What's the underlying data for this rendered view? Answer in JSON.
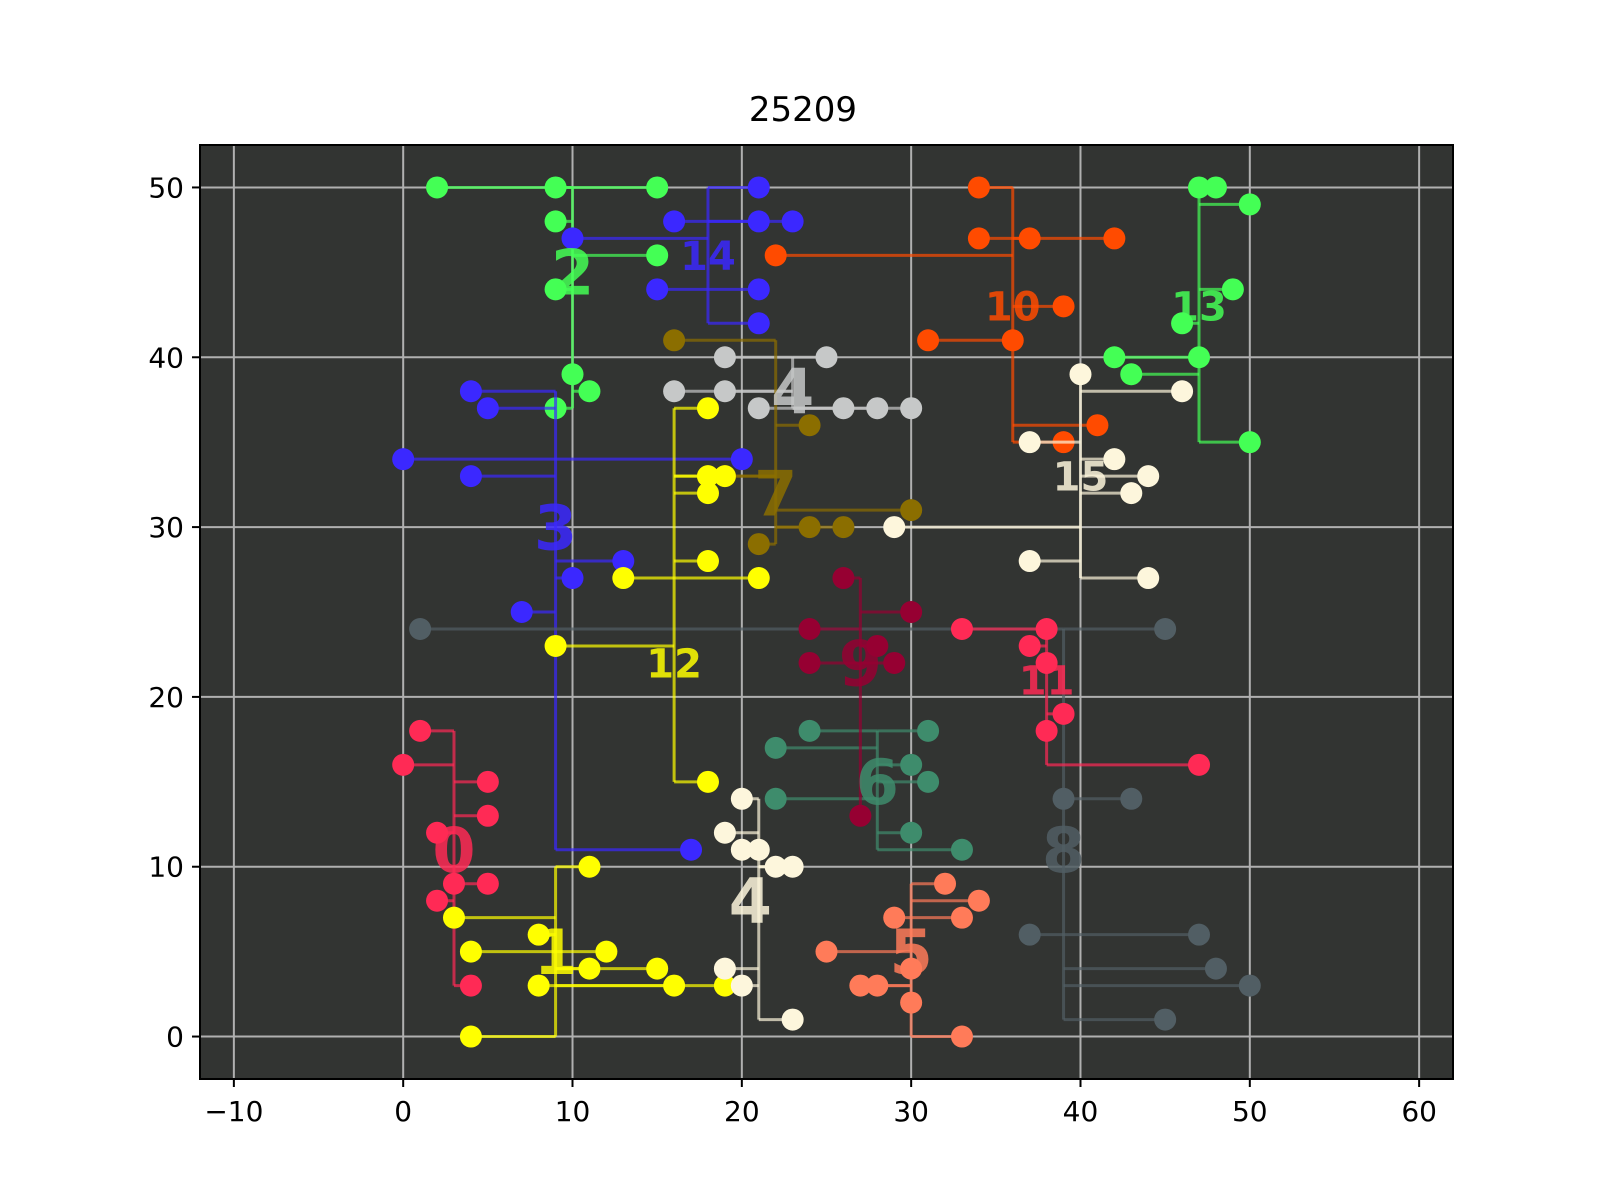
{
  "chart_data": {
    "type": "scatter",
    "title": "25209",
    "xlabel": "",
    "ylabel": "",
    "xlim": [
      -12,
      62
    ],
    "ylim": [
      -2.5,
      52.5
    ],
    "xticks": [
      -10,
      0,
      10,
      20,
      30,
      40,
      50,
      60
    ],
    "yticks": [
      0,
      10,
      20,
      30,
      40,
      50
    ],
    "xtick_labels": [
      "−10",
      "0",
      "10",
      "20",
      "30",
      "40",
      "50",
      "60"
    ],
    "ytick_labels": [
      "0",
      "10",
      "20",
      "30",
      "40",
      "50"
    ],
    "grid": true,
    "background": "#323432",
    "grid_color": "#b0b0b0",
    "series": [
      {
        "name": "0",
        "color": "#ff2a55",
        "label_at": [
          3,
          11
        ],
        "spine_x": 3,
        "points": [
          [
            1,
            18
          ],
          [
            0,
            16
          ],
          [
            5,
            15
          ],
          [
            5,
            13
          ],
          [
            2,
            12
          ],
          [
            3,
            9
          ],
          [
            5,
            9
          ],
          [
            2,
            8
          ],
          [
            4,
            3
          ]
        ]
      },
      {
        "name": "1",
        "color": "#ffff00",
        "label_at": [
          9,
          5
        ],
        "spine_x": 9,
        "points": [
          [
            3,
            7
          ],
          [
            4,
            5
          ],
          [
            8,
            6
          ],
          [
            12,
            5
          ],
          [
            11,
            4
          ],
          [
            15,
            4
          ],
          [
            8,
            3
          ],
          [
            16,
            3
          ],
          [
            4,
            0
          ],
          [
            11,
            10
          ],
          [
            19,
            3
          ]
        ]
      },
      {
        "name": "2",
        "color": "#44ff55",
        "label_at": [
          10,
          45
        ],
        "spine_x": 10,
        "points": [
          [
            2,
            50
          ],
          [
            9,
            50
          ],
          [
            15,
            50
          ],
          [
            9,
            48
          ],
          [
            15,
            46
          ],
          [
            9,
            44
          ],
          [
            10,
            39
          ],
          [
            11,
            38
          ],
          [
            9,
            37
          ]
        ]
      },
      {
        "name": "3",
        "color": "#3b28ff",
        "label_at": [
          9,
          30
        ],
        "spine_x": 9,
        "points": [
          [
            4,
            38
          ],
          [
            5,
            37
          ],
          [
            0,
            34
          ],
          [
            20,
            34
          ],
          [
            4,
            33
          ],
          [
            13,
            28
          ],
          [
            10,
            27
          ],
          [
            7,
            25
          ],
          [
            17,
            11
          ]
        ]
      },
      {
        "name": "4",
        "color": "#c6c8c8",
        "label_at": [
          23,
          38
        ],
        "spine_x": 23,
        "points": [
          [
            19,
            40
          ],
          [
            25,
            40
          ],
          [
            16,
            38
          ],
          [
            19,
            38
          ],
          [
            21,
            37
          ],
          [
            26,
            37
          ],
          [
            28,
            37
          ],
          [
            30,
            37
          ]
        ]
      },
      {
        "name": "4",
        "color": "#fdf6dc",
        "label_at": [
          20.5,
          8
        ],
        "spine_x": 21,
        "points": [
          [
            20,
            14
          ],
          [
            19,
            12
          ],
          [
            20,
            11
          ],
          [
            21,
            11
          ],
          [
            22,
            10
          ],
          [
            23,
            10
          ],
          [
            19,
            4
          ],
          [
            20,
            3
          ],
          [
            23,
            1
          ]
        ]
      },
      {
        "name": "5",
        "color": "#ff7b59",
        "label_at": [
          30,
          5
        ],
        "spine_x": 30,
        "points": [
          [
            32,
            9
          ],
          [
            34,
            8
          ],
          [
            29,
            7
          ],
          [
            33,
            7
          ],
          [
            25,
            5
          ],
          [
            27,
            3
          ],
          [
            28,
            3
          ],
          [
            30,
            4
          ],
          [
            30,
            2
          ],
          [
            33,
            0
          ]
        ]
      },
      {
        "name": "6",
        "color": "#3e8c6c",
        "label_at": [
          28,
          15
        ],
        "spine_x": 28,
        "points": [
          [
            24,
            18
          ],
          [
            31,
            18
          ],
          [
            22,
            17
          ],
          [
            30,
            16
          ],
          [
            31,
            15
          ],
          [
            22,
            14
          ],
          [
            30,
            12
          ],
          [
            33,
            11
          ]
        ]
      },
      {
        "name": "7",
        "color": "#8b6e00",
        "label_at": [
          22,
          32
        ],
        "spine_x": 22,
        "points": [
          [
            16,
            41
          ],
          [
            24,
            36
          ],
          [
            18,
            33
          ],
          [
            19,
            33
          ],
          [
            30,
            31
          ],
          [
            24,
            30
          ],
          [
            26,
            30
          ],
          [
            21,
            29
          ]
        ]
      },
      {
        "name": "8",
        "color": "#515e64",
        "label_at": [
          39,
          11
        ],
        "spine_x": 39,
        "points": [
          [
            1,
            24
          ],
          [
            45,
            24
          ],
          [
            39,
            14
          ],
          [
            43,
            14
          ],
          [
            37,
            6
          ],
          [
            47,
            6
          ],
          [
            48,
            4
          ],
          [
            50,
            3
          ],
          [
            45,
            1
          ]
        ]
      },
      {
        "name": "9",
        "color": "#960032",
        "label_at": [
          27,
          22
        ],
        "spine_x": 27,
        "points": [
          [
            26,
            27
          ],
          [
            30,
            25
          ],
          [
            24,
            24
          ],
          [
            28,
            23
          ],
          [
            24,
            22
          ],
          [
            29,
            22
          ],
          [
            27,
            13
          ]
        ]
      },
      {
        "name": "10",
        "color": "#ff4b00",
        "label_at": [
          36,
          43
        ],
        "spine_x": 36,
        "points": [
          [
            34,
            50
          ],
          [
            34,
            47
          ],
          [
            37,
            47
          ],
          [
            42,
            47
          ],
          [
            22,
            46
          ],
          [
            39,
            43
          ],
          [
            31,
            41
          ],
          [
            36,
            41
          ],
          [
            41,
            36
          ],
          [
            39,
            35
          ]
        ]
      },
      {
        "name": "11",
        "color": "#ff2a55",
        "label_at": [
          38,
          21
        ],
        "spine_x": 38,
        "points": [
          [
            33,
            24
          ],
          [
            38,
            24
          ],
          [
            37,
            23
          ],
          [
            38,
            22
          ],
          [
            39,
            19
          ],
          [
            38,
            18
          ],
          [
            47,
            16
          ]
        ]
      },
      {
        "name": "12",
        "color": "#ffff00",
        "label_at": [
          16,
          22
        ],
        "spine_x": 16,
        "points": [
          [
            18,
            37
          ],
          [
            18,
            33
          ],
          [
            19,
            33
          ],
          [
            18,
            32
          ],
          [
            18,
            28
          ],
          [
            13,
            27
          ],
          [
            21,
            27
          ],
          [
            9,
            23
          ],
          [
            18,
            15
          ]
        ]
      },
      {
        "name": "13",
        "color": "#44ff55",
        "label_at": [
          47,
          43
        ],
        "spine_x": 47,
        "points": [
          [
            47,
            50
          ],
          [
            48,
            50
          ],
          [
            50,
            49
          ],
          [
            49,
            44
          ],
          [
            46,
            42
          ],
          [
            47,
            40
          ],
          [
            42,
            40
          ],
          [
            43,
            39
          ],
          [
            50,
            35
          ]
        ]
      },
      {
        "name": "14",
        "color": "#3b28ff",
        "label_at": [
          18,
          46
        ],
        "spine_x": 18,
        "points": [
          [
            21,
            50
          ],
          [
            16,
            48
          ],
          [
            21,
            48
          ],
          [
            23,
            48
          ],
          [
            10,
            47
          ],
          [
            21,
            44
          ],
          [
            15,
            44
          ],
          [
            21,
            42
          ]
        ]
      },
      {
        "name": "15",
        "color": "#fdf6dc",
        "label_at": [
          40,
          33
        ],
        "spine_x": 40,
        "points": [
          [
            40,
            39
          ],
          [
            46,
            38
          ],
          [
            37,
            35
          ],
          [
            42,
            34
          ],
          [
            44,
            33
          ],
          [
            43,
            32
          ],
          [
            29,
            30
          ],
          [
            37,
            28
          ],
          [
            44,
            27
          ]
        ]
      }
    ]
  }
}
